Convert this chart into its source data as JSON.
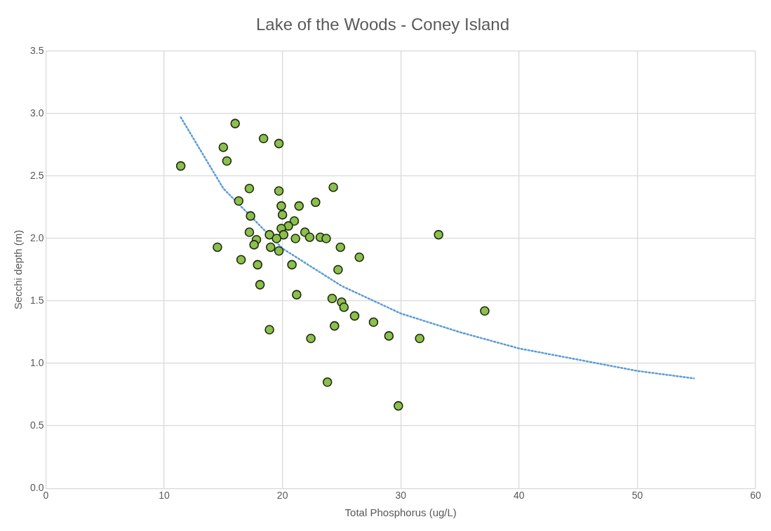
{
  "chart_data": {
    "type": "scatter",
    "title": "Lake of the Woods - Coney Island",
    "xlabel": "Total Phosphorus (ug/L)",
    "ylabel": "Secchi depth (m)",
    "xlim": [
      0,
      60
    ],
    "xticks": [
      0,
      10,
      20,
      30,
      40,
      50,
      60
    ],
    "ylim": [
      0,
      3.5
    ],
    "yticks": [
      {
        "value": 0,
        "label": "0.0"
      },
      {
        "value": 0.5,
        "label": "0.5"
      },
      {
        "value": 1,
        "label": "1.0"
      },
      {
        "value": 1.5,
        "label": "1.5"
      },
      {
        "value": 2,
        "label": "2.0"
      },
      {
        "value": 2.5,
        "label": "2.5"
      },
      {
        "value": 3,
        "label": "3.0"
      },
      {
        "value": 3.5,
        "label": "3.5"
      }
    ],
    "grid": true,
    "legend": false,
    "marker": "circle",
    "series": [
      {
        "type": "scatter",
        "color": "#8cbf4c",
        "x": [
          11.4,
          16.0,
          15.0,
          15.3,
          18.4,
          19.7,
          17.2,
          16.3,
          19.7,
          24.3,
          22.8,
          19.9,
          21.4,
          17.3,
          20.0,
          21.0,
          20.5,
          19.9,
          17.2,
          18.9,
          20.1,
          21.9,
          22.3,
          23.2,
          23.7,
          21.1,
          19.5,
          17.8,
          17.6,
          14.5,
          19.0,
          19.7,
          24.9,
          33.2,
          16.5,
          17.9,
          20.8,
          26.5,
          24.7,
          18.1,
          21.2,
          24.2,
          25.0,
          25.2,
          26.1,
          27.7,
          24.4,
          18.9,
          29.0,
          31.6,
          22.4,
          37.1,
          23.8,
          29.8
        ],
        "values": [
          2.58,
          2.92,
          2.73,
          2.62,
          2.8,
          2.76,
          2.4,
          2.3,
          2.38,
          2.41,
          2.29,
          2.26,
          2.26,
          2.18,
          2.19,
          2.14,
          2.1,
          2.08,
          2.05,
          2.03,
          2.03,
          2.05,
          2.01,
          2.01,
          2.0,
          2.0,
          2.0,
          1.99,
          1.95,
          1.93,
          1.93,
          1.9,
          1.93,
          2.03,
          1.83,
          1.79,
          1.79,
          1.85,
          1.75,
          1.63,
          1.55,
          1.52,
          1.49,
          1.45,
          1.38,
          1.33,
          1.3,
          1.27,
          1.22,
          1.2,
          1.2,
          1.42,
          0.85,
          0.66
        ]
      },
      {
        "type": "line",
        "color": "#5b9bd5",
        "line_style": "dotted",
        "marker": "none",
        "x": [
          11.4,
          15,
          20,
          25,
          30,
          35,
          40,
          45,
          50,
          54.8
        ],
        "values": [
          2.97,
          2.4,
          1.92,
          1.62,
          1.4,
          1.25,
          1.12,
          1.03,
          0.94,
          0.88
        ]
      }
    ]
  }
}
